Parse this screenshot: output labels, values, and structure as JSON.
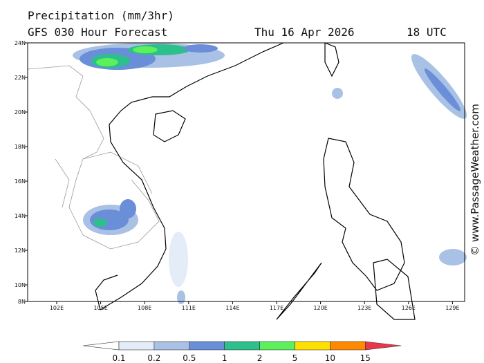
{
  "header": {
    "title": "Precipitation (mm/3hr)",
    "subtitle": "GFS 030 Hour Forecast",
    "date": "Thu 16 Apr 2026",
    "time": "18 UTC"
  },
  "map": {
    "lat_labels": [
      "24N",
      "22N",
      "20N",
      "18N",
      "16N",
      "14N",
      "12N",
      "10N",
      "8N"
    ],
    "lon_labels": [
      "102E",
      "105E",
      "108E",
      "111E",
      "114E",
      "117E",
      "120E",
      "123E",
      "126E",
      "129E"
    ]
  },
  "colorbar": {
    "labels": [
      "0.1",
      "0.2",
      "0.5",
      "1",
      "2",
      "5",
      "10",
      "15"
    ],
    "colors": [
      "#ffffff",
      "#e4ecf8",
      "#a9c1e4",
      "#6a8fd8",
      "#2dbf8c",
      "#5cf05c",
      "#ffe000",
      "#ff8a00",
      "#e8384a"
    ]
  },
  "watermark": "© www.PassageWeather.com"
}
